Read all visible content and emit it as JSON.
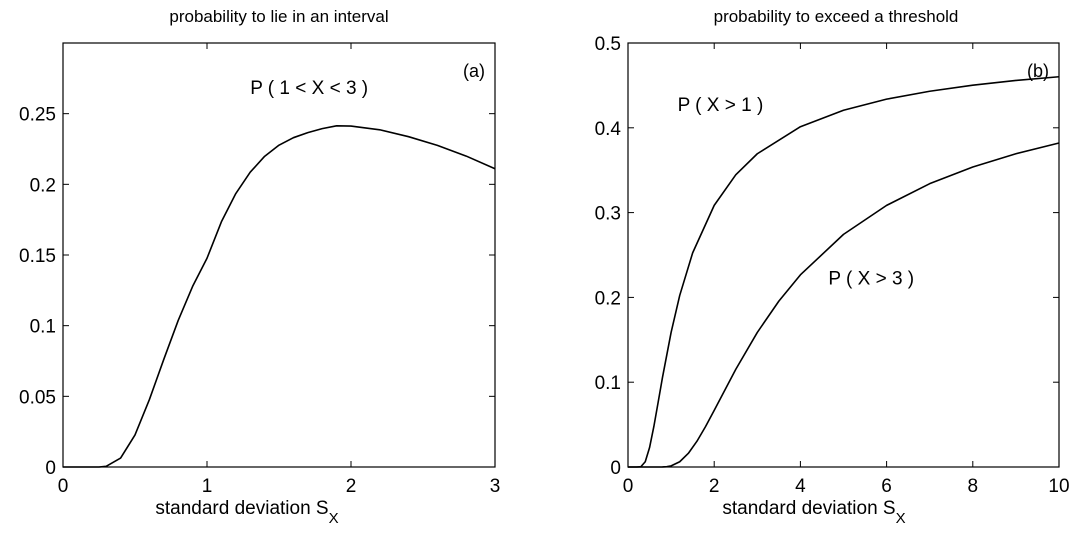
{
  "chart_data": [
    {
      "panel": "(a)",
      "type": "line",
      "title": "probability to lie in an  interval",
      "xlabel": "standard deviation S",
      "xlabel_sub": "X",
      "ylabel": "",
      "xlim": [
        0,
        3
      ],
      "ylim": [
        0,
        0.3
      ],
      "xticks": [
        "0",
        "1",
        "2",
        "3"
      ],
      "yticks": [
        "0",
        "0.05",
        "0.1",
        "0.15",
        "0.2",
        "0.25"
      ],
      "grid": false,
      "series": [
        {
          "name": "P ( 1 < X < 3 )",
          "x": [
            0,
            0.25,
            0.3,
            0.4,
            0.5,
            0.6,
            0.7,
            0.8,
            0.9,
            1.0,
            1.1,
            1.2,
            1.3,
            1.4,
            1.5,
            1.6,
            1.7,
            1.8,
            1.9,
            2.0,
            2.2,
            2.4,
            2.6,
            2.8,
            3.0
          ],
          "y": [
            0,
            0,
            0.0005,
            0.0063,
            0.0227,
            0.0477,
            0.0762,
            0.1037,
            0.1278,
            0.1477,
            0.1735,
            0.1935,
            0.2086,
            0.2198,
            0.2277,
            0.233,
            0.2366,
            0.2394,
            0.2414,
            0.2412,
            0.2386,
            0.2337,
            0.2276,
            0.22,
            0.211
          ]
        }
      ],
      "annotations": [
        {
          "text": "P ( 1 < X < 3 )",
          "x": 1.3,
          "y": 0.264
        }
      ]
    },
    {
      "panel": "(b)",
      "type": "line",
      "title": "probability to exceed a threshold",
      "xlabel": "standard deviation S",
      "xlabel_sub": "X",
      "ylabel": "",
      "xlim": [
        0,
        10
      ],
      "ylim": [
        0,
        0.5
      ],
      "xticks": [
        "0",
        "2",
        "4",
        "6",
        "8",
        "10"
      ],
      "yticks": [
        "0",
        "0.1",
        "0.2",
        "0.3",
        "0.4",
        "0.5"
      ],
      "grid": false,
      "series": [
        {
          "name": "P ( X > 1 )",
          "x": [
            0,
            0.2,
            0.3,
            0.4,
            0.5,
            0.6,
            0.7,
            0.8,
            1.0,
            1.2,
            1.5,
            2.0,
            2.5,
            3.0,
            4.0,
            5.0,
            6.0,
            7.0,
            8.0,
            9.0,
            10.0
          ],
          "y": [
            0,
            0,
            0.0004,
            0.0062,
            0.0228,
            0.0478,
            0.0765,
            0.1056,
            0.1587,
            0.2023,
            0.2525,
            0.3085,
            0.3446,
            0.3694,
            0.4013,
            0.4207,
            0.4338,
            0.4431,
            0.4503,
            0.4558,
            0.4602
          ]
        },
        {
          "name": "P ( X > 3 )",
          "x": [
            0,
            0.7,
            0.8,
            0.9,
            1.0,
            1.2,
            1.4,
            1.6,
            1.8,
            2.0,
            2.5,
            3.0,
            3.5,
            4.0,
            5.0,
            6.0,
            7.0,
            8.0,
            9.0,
            10.0
          ],
          "y": [
            0,
            0,
            0.0001,
            0.0004,
            0.0013,
            0.0062,
            0.0161,
            0.0304,
            0.0478,
            0.0668,
            0.1151,
            0.1587,
            0.1956,
            0.2266,
            0.2743,
            0.3085,
            0.3341,
            0.3538,
            0.3694,
            0.3821
          ]
        }
      ],
      "annotations": [
        {
          "text": "P ( X > 1 )",
          "x": 1.15,
          "y": 0.42
        },
        {
          "text": "P ( X > 3 )",
          "x": 4.65,
          "y": 0.215
        }
      ]
    }
  ]
}
